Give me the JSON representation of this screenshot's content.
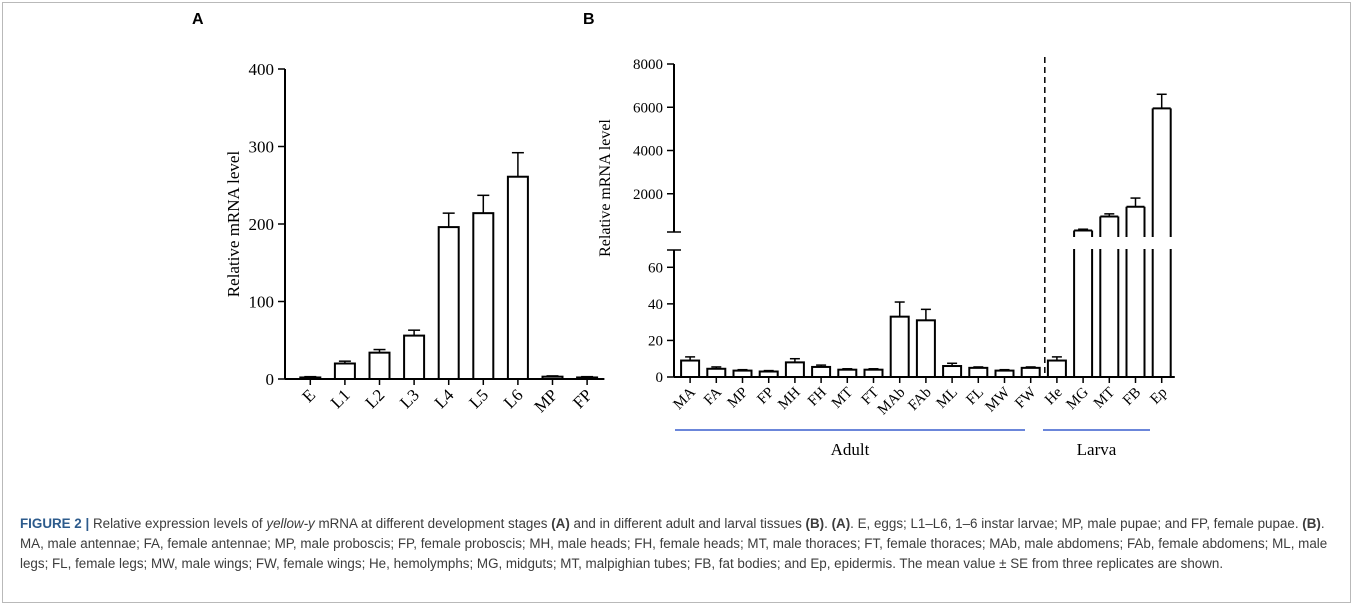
{
  "panel_a_label": "A",
  "panel_b_label": "B",
  "chart_data": [
    {
      "type": "bar",
      "ylabel": "Relative mRNA level",
      "ylim": [
        0,
        400
      ],
      "yticks": [
        "0",
        "100",
        "200",
        "300",
        "400"
      ],
      "categories": [
        "E",
        "L1",
        "L2",
        "L3",
        "L4",
        "L5",
        "L6",
        "MP",
        "FP"
      ],
      "values": [
        2,
        20,
        34,
        56,
        196,
        214,
        261,
        3,
        2
      ],
      "errors": [
        1,
        3,
        4,
        7,
        18,
        23,
        31,
        1,
        1
      ],
      "grid": false
    },
    {
      "type": "bar",
      "ylabel": "Relative mRNA level",
      "broken_y_axis": true,
      "lower_ylim": [
        0,
        70
      ],
      "upper_ylim": [
        0,
        8000
      ],
      "lower_yticks": [
        "0",
        "20",
        "40",
        "60"
      ],
      "upper_yticks": [
        "2000",
        "4000",
        "6000",
        "8000"
      ],
      "categories": [
        "MA",
        "FA",
        "MP",
        "FP",
        "MH",
        "FH",
        "MT",
        "FT",
        "MAb",
        "FAb",
        "ML",
        "FL",
        "MW",
        "FW",
        "He",
        "MG",
        "MT",
        "FB",
        "Ep"
      ],
      "values": [
        9,
        4.5,
        3.5,
        3,
        8,
        5.5,
        4,
        4,
        33,
        31,
        6,
        5,
        3.5,
        5,
        9,
        300,
        950,
        1400,
        5950
      ],
      "errors": [
        2,
        1,
        0.5,
        0.5,
        2,
        1,
        0.5,
        0.5,
        8,
        6,
        1.5,
        0.5,
        0.5,
        0.5,
        2,
        60,
        120,
        400,
        650
      ],
      "groups": [
        {
          "label": "Adult",
          "categories": [
            "MA",
            "FA",
            "MP",
            "FP",
            "MH",
            "FH",
            "MT",
            "FT",
            "MAb",
            "FAb",
            "ML",
            "FL",
            "MW",
            "FW"
          ]
        },
        {
          "label": "Larva",
          "categories": [
            "He",
            "MG",
            "MT",
            "FB",
            "Ep"
          ]
        }
      ],
      "grid": false
    }
  ],
  "caption": {
    "label": "FIGURE 2",
    "separator": " | ",
    "segments": [
      {
        "t": "Relative expression levels of ",
        "s": "n"
      },
      {
        "t": "yellow-y",
        "s": "i"
      },
      {
        "t": " mRNA at different development stages ",
        "s": "n"
      },
      {
        "t": "(A)",
        "s": "b"
      },
      {
        "t": " and in different adult and larval tissues ",
        "s": "n"
      },
      {
        "t": "(B)",
        "s": "b"
      },
      {
        "t": ". ",
        "s": "n"
      },
      {
        "t": "(A)",
        "s": "b"
      },
      {
        "t": ". E, eggs; L1–L6, 1–6 instar larvae; MP, male pupae; and FP, female pupae. ",
        "s": "n"
      },
      {
        "t": "(B)",
        "s": "b"
      },
      {
        "t": ". MA, male antennae; FA, female antennae; MP, male proboscis; FP, female proboscis; MH, male heads; FH, female heads; MT, male thoraces; FT, female thoraces; MAb, male abdomens; FAb, female abdomens; ML, male legs; FL, female legs; MW, male wings; FW, female wings; He, hemolymphs; MG, midguts; MT, malpighian tubes; FB, fat bodies; and Ep, epidermis. The mean value ± SE from three replicates are shown.",
        "s": "n"
      }
    ]
  },
  "colors": {
    "axis": "#000000",
    "group_line": "#3a5fcd",
    "caption_lead": "#2d5b8c",
    "caption_text": "#3c3c3c",
    "frame": "#b9b9b9"
  }
}
